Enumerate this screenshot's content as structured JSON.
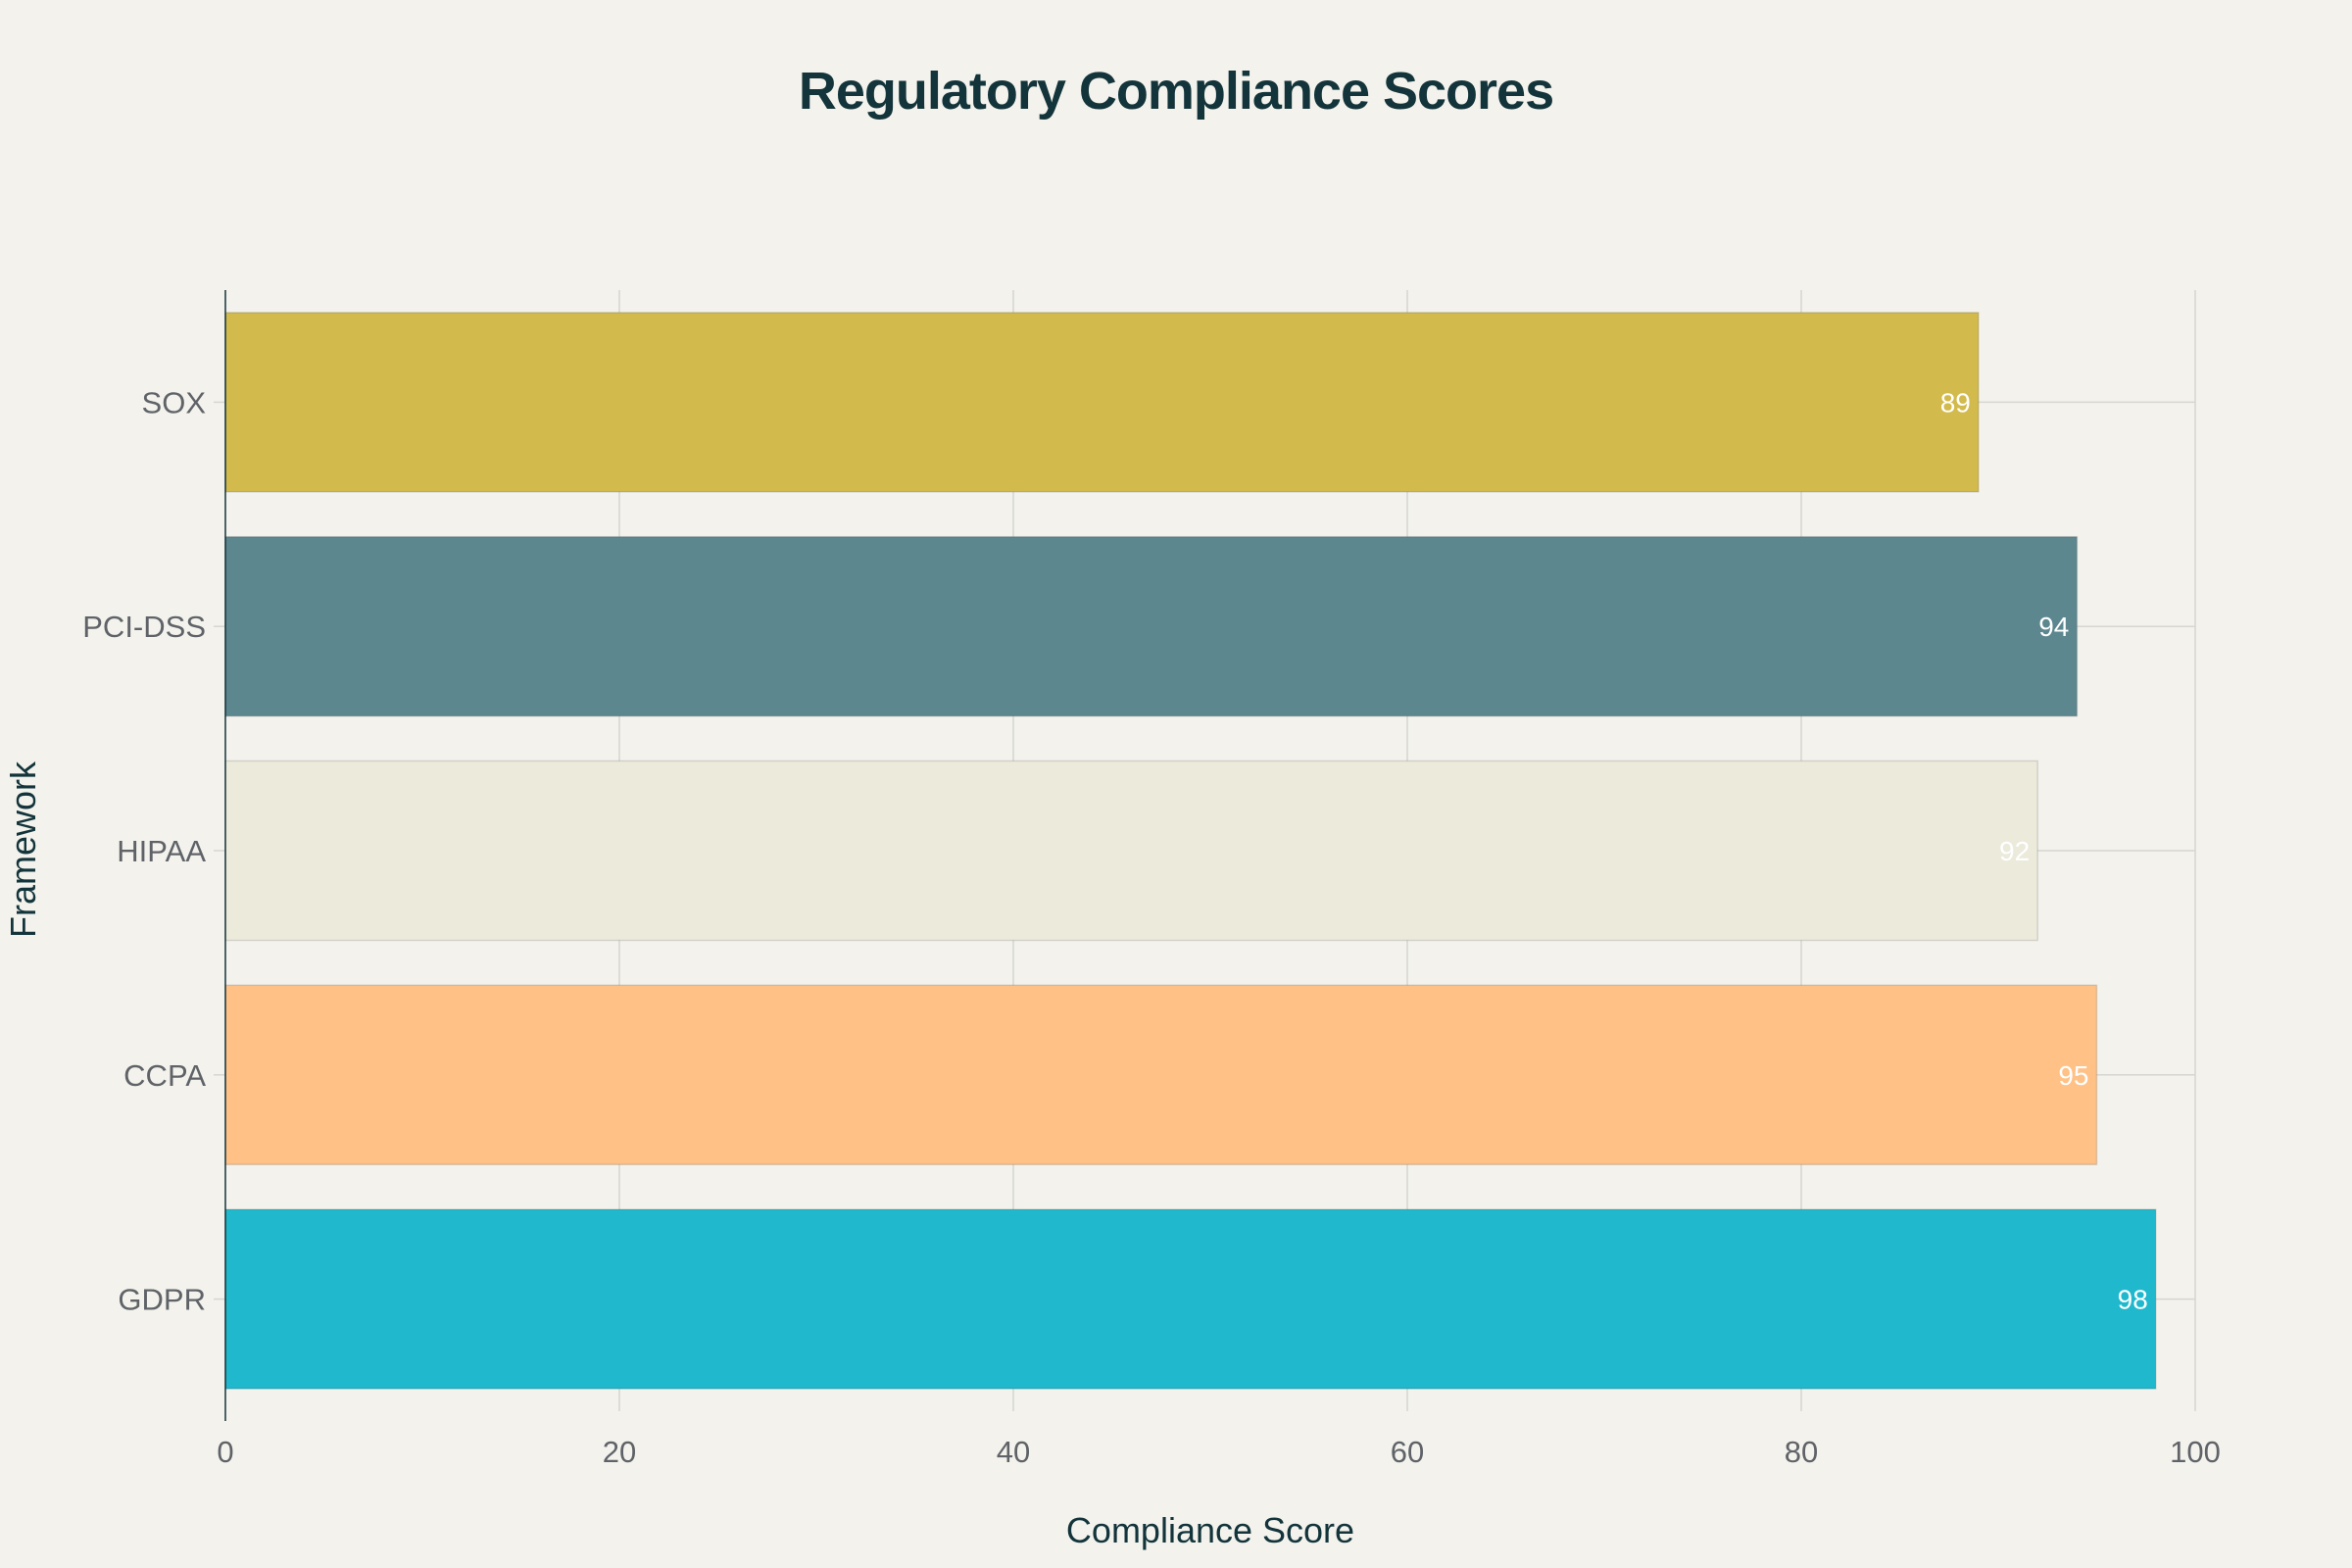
{
  "chart_data": {
    "type": "bar",
    "orientation": "horizontal",
    "title": "Regulatory Compliance Scores",
    "xlabel": "Compliance Score",
    "ylabel": "Framework",
    "categories": [
      "GDPR",
      "CCPA",
      "HIPAA",
      "PCI-DSS",
      "SOX"
    ],
    "values": [
      98,
      95,
      92,
      94,
      89
    ],
    "data_labels": [
      "98",
      "95",
      "92",
      "94",
      "89"
    ],
    "colors": [
      "#1fb8cd",
      "#ffc185",
      "#eceadb",
      "#5d878f",
      "#d2ba4c"
    ],
    "xlim": [
      0,
      100
    ],
    "xticks": [
      0,
      20,
      40,
      60,
      80,
      100
    ],
    "xtick_labels": [
      "0",
      "20",
      "40",
      "60",
      "80",
      "100"
    ],
    "grid": true,
    "legend": "none"
  }
}
